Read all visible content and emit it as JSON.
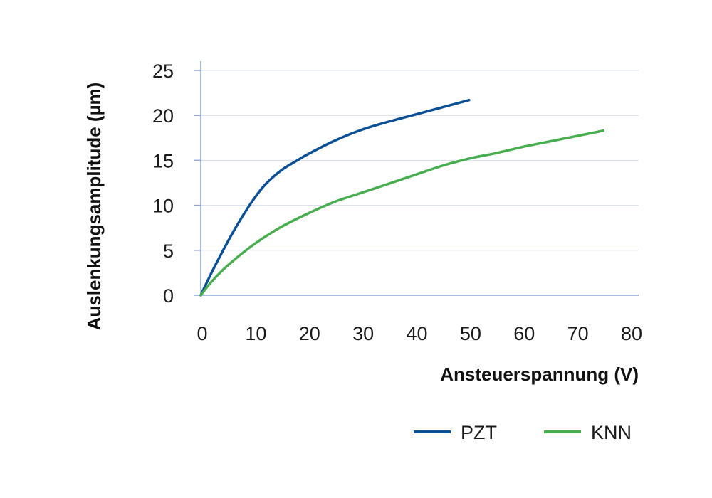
{
  "chart_data": {
    "type": "line",
    "xlabel": "Ansteuerspannung (V)",
    "ylabel": "Auslenkungsamplitude (µm)",
    "xlim": [
      0,
      80
    ],
    "ylim": [
      0,
      25
    ],
    "x_ticks": [
      0,
      10,
      20,
      30,
      40,
      50,
      60,
      70,
      80
    ],
    "y_ticks": [
      0,
      5,
      10,
      15,
      20,
      25
    ],
    "grid": "horizontal",
    "legend_position": "bottom-right",
    "series": [
      {
        "name": "PZT",
        "color": "#0b4f95",
        "x": [
          0,
          2,
          4,
          6,
          8,
          10,
          12,
          15,
          18,
          20,
          25,
          30,
          35,
          40,
          45,
          50
        ],
        "y": [
          0,
          2.5,
          4.8,
          7.0,
          9.0,
          10.8,
          12.3,
          13.9,
          15.0,
          15.7,
          17.2,
          18.4,
          19.3,
          20.1,
          20.9,
          21.7
        ]
      },
      {
        "name": "KNN",
        "color": "#47ad4f",
        "x": [
          0,
          2,
          5,
          10,
          15,
          20,
          25,
          30,
          35,
          40,
          45,
          50,
          55,
          60,
          65,
          70,
          75
        ],
        "y": [
          0,
          1.5,
          3.3,
          5.7,
          7.6,
          9.1,
          10.4,
          11.4,
          12.4,
          13.4,
          14.4,
          15.2,
          15.8,
          16.5,
          17.1,
          17.7,
          18.3
        ]
      }
    ]
  }
}
